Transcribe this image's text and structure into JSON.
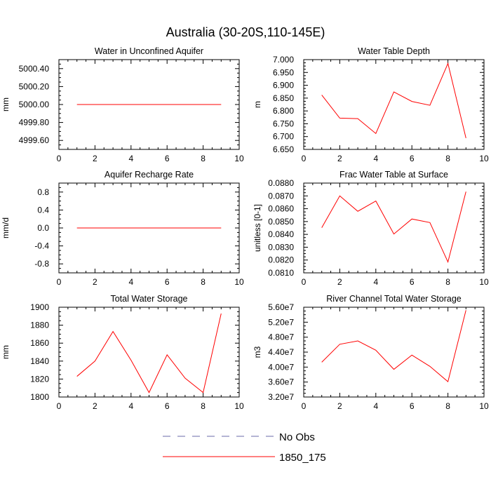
{
  "page_title": "Australia (30-20S,110-145E)",
  "chart_data": [
    {
      "type": "line",
      "title": "Water in Unconfined Aquifer",
      "ylabel": "mm",
      "xlim": [
        0,
        10
      ],
      "ylim": [
        4999.5,
        5000.5
      ],
      "xticks": [
        0,
        2,
        4,
        6,
        8,
        10
      ],
      "yticks": [
        4999.6,
        4999.8,
        5000.0,
        5000.2,
        5000.4
      ],
      "ytick_labels": [
        "4999.60",
        "4999.80",
        "5000.00",
        "5000.20",
        "5000.40"
      ],
      "series": [
        {
          "name": "1850_175",
          "color": "#ff0000",
          "x": [
            1,
            2,
            3,
            4,
            5,
            6,
            7,
            8,
            9
          ],
          "y": [
            5000,
            5000,
            5000,
            5000,
            5000,
            5000,
            5000,
            5000,
            5000
          ]
        }
      ]
    },
    {
      "type": "line",
      "title": "Water Table Depth",
      "ylabel": "m",
      "xlim": [
        0,
        10
      ],
      "ylim": [
        6.65,
        7.0
      ],
      "xticks": [
        0,
        2,
        4,
        6,
        8,
        10
      ],
      "yticks": [
        6.65,
        6.7,
        6.75,
        6.8,
        6.85,
        6.9,
        6.95,
        7.0
      ],
      "ytick_labels": [
        "6.650",
        "6.700",
        "6.750",
        "6.800",
        "6.850",
        "6.900",
        "6.950",
        "7.000"
      ],
      "series": [
        {
          "name": "1850_175",
          "color": "#ff0000",
          "x": [
            1,
            2,
            3,
            4,
            5,
            6,
            7,
            8,
            9
          ],
          "y": [
            6.862,
            6.772,
            6.77,
            6.712,
            6.874,
            6.837,
            6.822,
            6.985,
            6.694
          ]
        }
      ]
    },
    {
      "type": "line",
      "title": "Aquifer Recharge Rate",
      "ylabel": "mm/d",
      "xlim": [
        0,
        10
      ],
      "ylim": [
        -1.0,
        1.0
      ],
      "xticks": [
        0,
        2,
        4,
        6,
        8,
        10
      ],
      "yticks": [
        -0.8,
        -0.4,
        0.0,
        0.4,
        0.8
      ],
      "ytick_labels": [
        "-0.8",
        "-0.4",
        "0.0",
        "0.4",
        "0.8"
      ],
      "series": [
        {
          "name": "1850_175",
          "color": "#ff0000",
          "x": [
            1,
            2,
            3,
            4,
            5,
            6,
            7,
            8,
            9
          ],
          "y": [
            0,
            0,
            0,
            0,
            0,
            0,
            0,
            0,
            0
          ]
        }
      ]
    },
    {
      "type": "line",
      "title": "Frac Water Table at Surface",
      "ylabel": "unitless [0-1]",
      "xlim": [
        0,
        10
      ],
      "ylim": [
        0.081,
        0.088
      ],
      "xticks": [
        0,
        2,
        4,
        6,
        8,
        10
      ],
      "yticks": [
        0.081,
        0.082,
        0.083,
        0.084,
        0.085,
        0.086,
        0.087,
        0.088
      ],
      "ytick_labels": [
        "0.0810",
        "0.0820",
        "0.0830",
        "0.0840",
        "0.0850",
        "0.0860",
        "0.0870",
        "0.0880"
      ],
      "series": [
        {
          "name": "1850_175",
          "color": "#ff0000",
          "x": [
            1,
            2,
            3,
            4,
            5,
            6,
            7,
            8,
            9
          ],
          "y": [
            0.08452,
            0.087,
            0.0858,
            0.0866,
            0.08403,
            0.0852,
            0.08492,
            0.08185,
            0.08733
          ]
        }
      ]
    },
    {
      "type": "line",
      "title": "Total Water Storage",
      "ylabel": "mm",
      "xlim": [
        0,
        10
      ],
      "ylim": [
        1800,
        1900
      ],
      "xticks": [
        0,
        2,
        4,
        6,
        8,
        10
      ],
      "yticks": [
        1800,
        1820,
        1840,
        1860,
        1880,
        1900
      ],
      "ytick_labels": [
        "1800",
        "1820",
        "1840",
        "1860",
        "1880",
        "1900"
      ],
      "series": [
        {
          "name": "1850_175",
          "color": "#ff0000",
          "x": [
            1,
            2,
            3,
            4,
            5,
            6,
            7,
            8,
            9
          ],
          "y": [
            1823,
            1840,
            1873,
            1841,
            1805,
            1847,
            1821,
            1805,
            1893
          ]
        }
      ]
    },
    {
      "type": "line",
      "title": "River Channel Total Water Storage",
      "ylabel": "m3",
      "xlim": [
        0,
        10
      ],
      "ylim": [
        32000000,
        56000000
      ],
      "xticks": [
        0,
        2,
        4,
        6,
        8,
        10
      ],
      "yticks": [
        32000000,
        36000000,
        40000000,
        44000000,
        48000000,
        52000000,
        56000000
      ],
      "ytick_labels": [
        "3.20e7",
        "3.60e7",
        "4.00e7",
        "4.40e7",
        "4.80e7",
        "5.20e7",
        "5.60e7"
      ],
      "series": [
        {
          "name": "1850_175",
          "color": "#ff0000",
          "x": [
            1,
            2,
            3,
            4,
            5,
            6,
            7,
            8,
            9
          ],
          "y": [
            41300000,
            46100000,
            47000000,
            44500000,
            39400000,
            43200000,
            40200000,
            36100000,
            55200000
          ]
        }
      ]
    }
  ],
  "legend": {
    "placement": "bottom-center",
    "items": [
      {
        "label": "No Obs",
        "color": "#6a6aa8",
        "style": "dashed"
      },
      {
        "label": "1850_175",
        "color": "#ff0000",
        "style": "solid"
      }
    ]
  }
}
